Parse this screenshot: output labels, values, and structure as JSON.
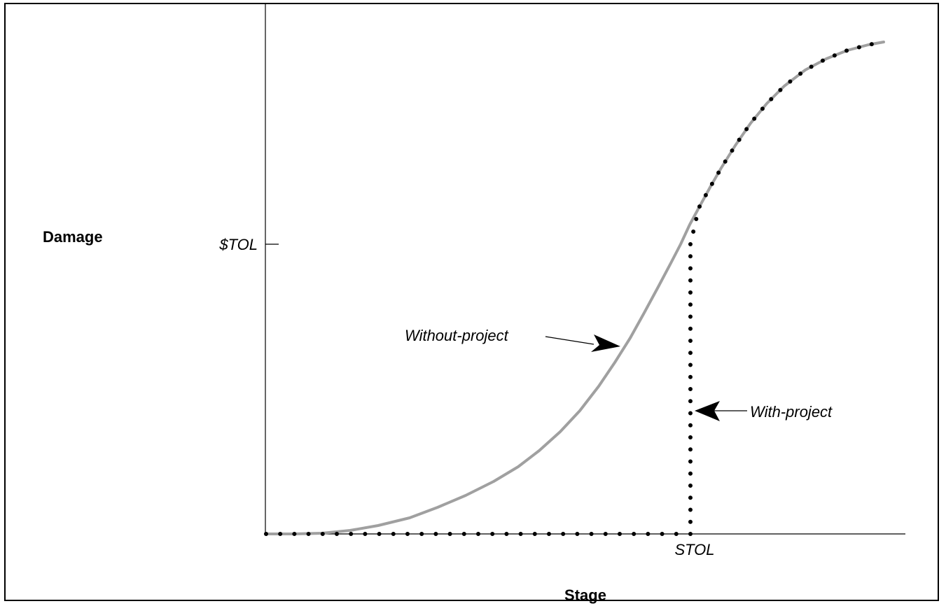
{
  "labels": {
    "y_axis": "Damage",
    "x_axis": "Stage",
    "y_tick": "$TOL",
    "x_tick": "STOL",
    "without_project": "Without-project",
    "with_project": "With-project"
  },
  "colors": {
    "axis": "#000000",
    "without_curve": "#a0a0a0",
    "with_curve": "#000000"
  },
  "chart_data": {
    "type": "line",
    "xlabel": "Stage",
    "ylabel": "Damage",
    "x_ticks": [
      "STOL"
    ],
    "y_ticks": [
      "$TOL"
    ],
    "series": [
      {
        "name": "Without-project",
        "style": "solid gray line"
      },
      {
        "name": "With-project",
        "style": "dotted black line"
      }
    ]
  }
}
